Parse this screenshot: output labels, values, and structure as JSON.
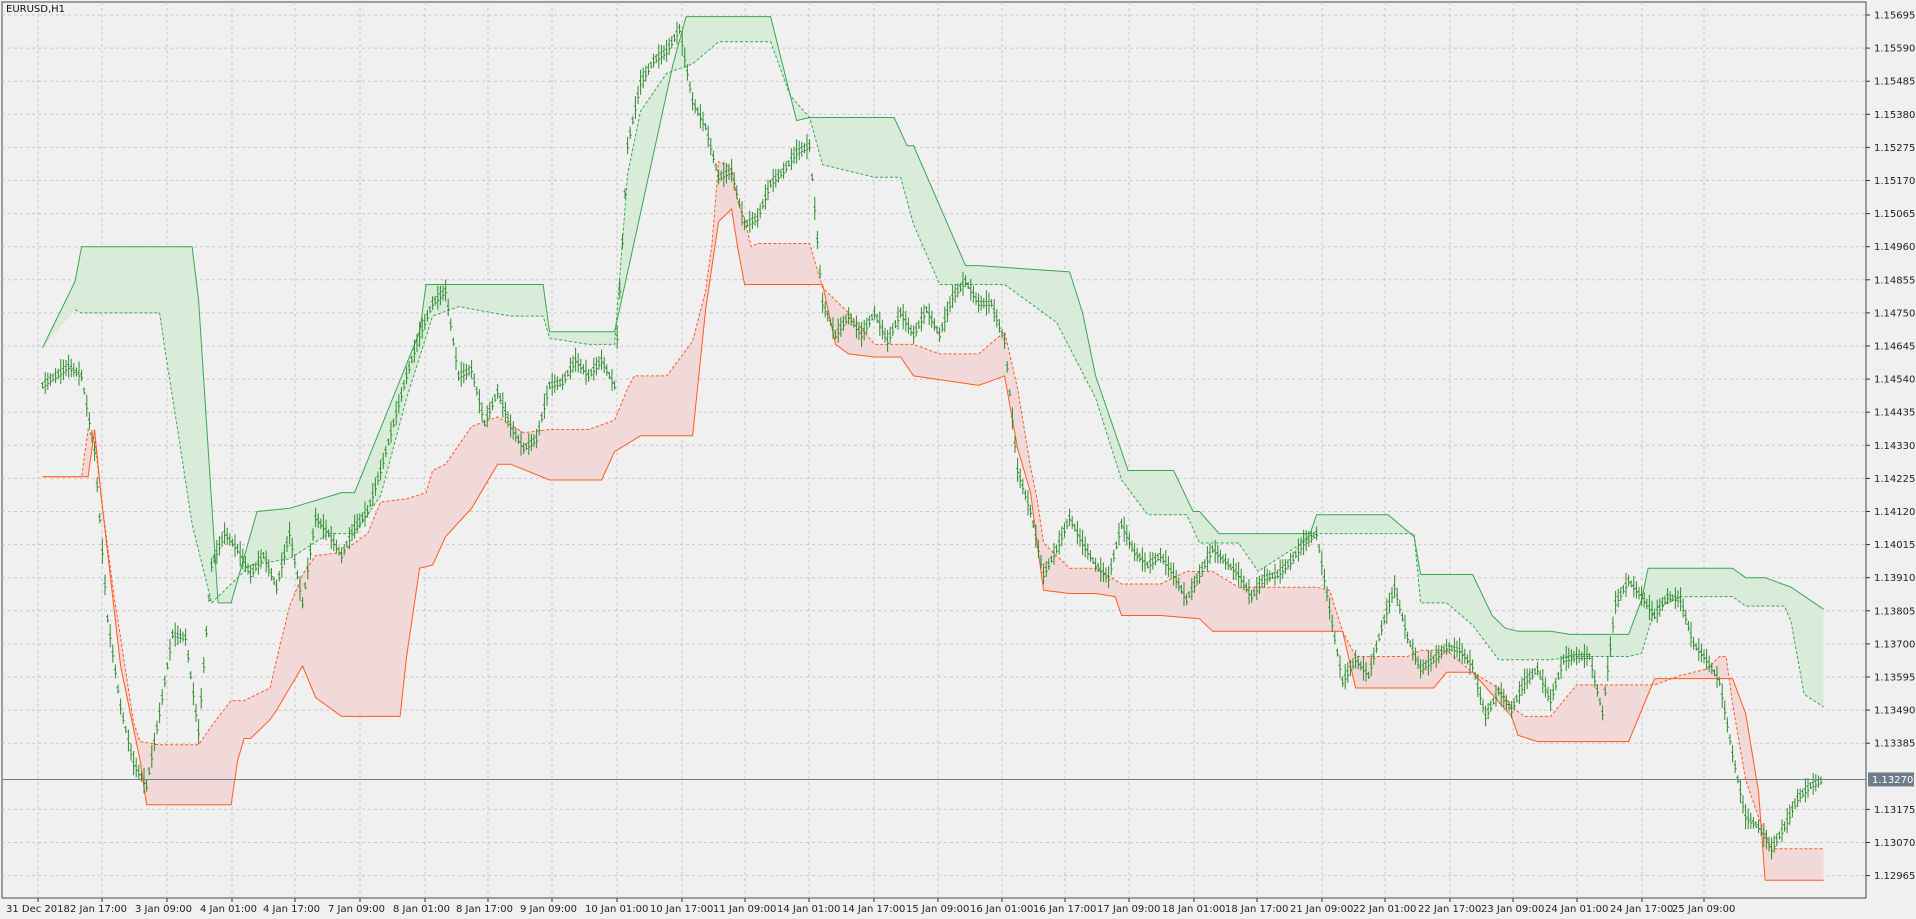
{
  "symbol_label": "EURUSD,H1",
  "current_price_label": "1.13270",
  "chart_data": {
    "type": "line",
    "symbol": "EURUSD",
    "timeframe": "H1",
    "current_price": 1.1327,
    "ylim": [
      1.1288,
      1.1574
    ],
    "grid": true,
    "colors": {
      "background": "#f0f0f0",
      "grid": "#c8c8c8",
      "price_bars": "#2e8b2e",
      "upper_band": "#3aa655",
      "upper_fill": "#d9ecd9",
      "lower_band": "#ff5a1f",
      "lower_fill": "#f1d9d9",
      "current_price_line": "#6e7c8c",
      "current_price_tag": "#6e7c8c"
    },
    "y_ticks": [
      "1.15695",
      "1.15590",
      "1.15485",
      "1.15380",
      "1.15275",
      "1.15170",
      "1.15065",
      "1.14960",
      "1.14855",
      "1.14750",
      "1.14645",
      "1.14540",
      "1.14435",
      "1.14330",
      "1.14225",
      "1.14120",
      "1.14015",
      "1.13910",
      "1.13805",
      "1.13700",
      "1.13595",
      "1.13490",
      "1.13385",
      "1.13175",
      "1.13070",
      "1.12965"
    ],
    "x_ticks": [
      "31 Dec 2018",
      "2 Jan 17:00",
      "3 Jan 09:00",
      "4 Jan 01:00",
      "4 Jan 17:00",
      "7 Jan 09:00",
      "8 Jan 01:00",
      "8 Jan 17:00",
      "9 Jan 09:00",
      "10 Jan 01:00",
      "10 Jan 17:00",
      "11 Jan 09:00",
      "14 Jan 01:00",
      "14 Jan 17:00",
      "15 Jan 09:00",
      "16 Jan 01:00",
      "16 Jan 17:00",
      "17 Jan 09:00",
      "18 Jan 01:00",
      "18 Jan 17:00",
      "21 Jan 09:00",
      "22 Jan 01:00",
      "22 Jan 17:00",
      "23 Jan 09:00",
      "24 Jan 01:00",
      "24 Jan 17:00",
      "25 Jan 09:00"
    ],
    "series": [
      {
        "key": "upper_outer",
        "x": [
          0,
          25,
          30,
          115,
          120,
          135,
          145,
          165,
          190,
          230,
          240,
          290,
          295,
          300,
          385,
          390,
          425,
          440,
          485,
          495,
          540,
          560,
          580,
          590,
          655,
          665,
          670,
          710,
          720,
          790,
          800,
          810,
          835,
          870,
          885,
          890,
          905,
          915,
          920,
          975,
          980,
          1035,
          1055,
          1060,
          1100,
          1115,
          1125,
          1135,
          1160,
          1175,
          1220,
          1230,
          1235,
          1270,
          1300,
          1310,
          1325,
          1345,
          1370
        ],
        "y": [
          1.1464,
          1.1485,
          1.1496,
          1.1496,
          1.1479,
          1.1383,
          1.1383,
          1.1412,
          1.1413,
          1.1418,
          1.1418,
          1.1469,
          1.1484,
          1.1484,
          1.1484,
          1.1469,
          1.1469,
          1.1469,
          1.1554,
          1.1569,
          1.1569,
          1.1569,
          1.1536,
          1.1537,
          1.1537,
          1.1528,
          1.1528,
          1.149,
          1.149,
          1.1488,
          1.1475,
          1.1455,
          1.1425,
          1.1425,
          1.1412,
          1.1412,
          1.1405,
          1.1405,
          1.1405,
          1.1405,
          1.1411,
          1.1411,
          1.1404,
          1.1392,
          1.1392,
          1.1379,
          1.1375,
          1.1374,
          1.1374,
          1.1373,
          1.1373,
          1.1384,
          1.1394,
          1.1394,
          1.1394,
          1.1391,
          1.1391,
          1.1388,
          1.1381
        ]
      },
      {
        "key": "upper_inner",
        "x": [
          25,
          30,
          90,
          95,
          105,
          115,
          130,
          160,
          190,
          220,
          240,
          260,
          280,
          300,
          320,
          360,
          385,
          390,
          420,
          440,
          450,
          460,
          480,
          500,
          520,
          540,
          560,
          575,
          590,
          600,
          640,
          660,
          670,
          690,
          720,
          740,
          780,
          810,
          830,
          850,
          880,
          890,
          905,
          920,
          935,
          980,
          1010,
          1040,
          1055,
          1060,
          1080,
          1100,
          1120,
          1135,
          1160,
          1180,
          1200,
          1220,
          1230,
          1240,
          1260,
          1280,
          1300,
          1310,
          1325,
          1340,
          1345,
          1355,
          1370
        ],
        "y": [
          1.1476,
          1.1475,
          1.1475,
          1.1461,
          1.1435,
          1.1408,
          1.1383,
          1.1395,
          1.1397,
          1.1405,
          1.1405,
          1.1417,
          1.1448,
          1.1474,
          1.1477,
          1.1474,
          1.1474,
          1.1467,
          1.1465,
          1.1465,
          1.1519,
          1.1539,
          1.1551,
          1.1554,
          1.1561,
          1.1561,
          1.1561,
          1.1544,
          1.1537,
          1.1522,
          1.1518,
          1.1518,
          1.1503,
          1.1484,
          1.1484,
          1.1484,
          1.1472,
          1.1448,
          1.1422,
          1.1411,
          1.1411,
          1.1402,
          1.1402,
          1.1402,
          1.1393,
          1.1405,
          1.1405,
          1.1405,
          1.1405,
          1.1383,
          1.1383,
          1.1376,
          1.1365,
          1.1365,
          1.1365,
          1.1366,
          1.1366,
          1.1366,
          1.1367,
          1.1381,
          1.1385,
          1.1385,
          1.1385,
          1.1382,
          1.1382,
          1.1382,
          1.1377,
          1.1354,
          1.135
        ]
      },
      {
        "key": "lower_inner",
        "x": [
          0,
          30,
          35,
          40,
          45,
          55,
          60,
          70,
          75,
          90,
          120,
          130,
          145,
          150,
          155,
          175,
          180,
          190,
          200,
          210,
          230,
          250,
          260,
          280,
          295,
          300,
          310,
          320,
          330,
          350,
          370,
          390,
          420,
          440,
          450,
          455,
          460,
          480,
          500,
          510,
          515,
          520,
          530,
          535,
          540,
          545,
          550,
          560,
          590,
          600,
          620,
          640,
          670,
          690,
          720,
          740,
          750,
          760,
          765,
          770,
          790,
          810,
          830,
          860,
          880,
          900,
          920,
          980,
          990,
          1000,
          1010,
          1040,
          1050,
          1060,
          1080,
          1100,
          1120,
          1130,
          1140,
          1160,
          1180,
          1220,
          1240,
          1260,
          1280,
          1290,
          1295,
          1300,
          1310,
          1320,
          1330,
          1345,
          1370
        ],
        "y": [
          1.1423,
          1.1423,
          1.1438,
          1.1435,
          1.1417,
          1.1385,
          1.1372,
          1.1345,
          1.1339,
          1.1338,
          1.1338,
          1.1344,
          1.1352,
          1.1352,
          1.1352,
          1.1356,
          1.1365,
          1.1382,
          1.1392,
          1.1398,
          1.1399,
          1.1405,
          1.1415,
          1.1416,
          1.1418,
          1.1425,
          1.1427,
          1.1433,
          1.1439,
          1.1442,
          1.1437,
          1.1438,
          1.1438,
          1.1441,
          1.1451,
          1.1455,
          1.1455,
          1.1455,
          1.1466,
          1.1482,
          1.1497,
          1.1523,
          1.1521,
          1.151,
          1.1505,
          1.1496,
          1.1497,
          1.1497,
          1.1497,
          1.1483,
          1.1475,
          1.1465,
          1.1465,
          1.1462,
          1.1462,
          1.1469,
          1.1451,
          1.1426,
          1.1416,
          1.1402,
          1.1394,
          1.1394,
          1.1389,
          1.1389,
          1.1393,
          1.1393,
          1.1388,
          1.1388,
          1.1387,
          1.1374,
          1.1366,
          1.1366,
          1.1366,
          1.1368,
          1.1368,
          1.1361,
          1.1356,
          1.135,
          1.1347,
          1.1347,
          1.1357,
          1.1357,
          1.1357,
          1.136,
          1.1362,
          1.1366,
          1.1366,
          1.1351,
          1.1327,
          1.1315,
          1.1305,
          1.1305,
          1.1305
        ]
      },
      {
        "key": "lower_outer",
        "x": [
          0,
          35,
          40,
          45,
          60,
          75,
          80,
          90,
          145,
          150,
          155,
          160,
          175,
          180,
          200,
          210,
          230,
          260,
          275,
          280,
          290,
          300,
          310,
          330,
          350,
          360,
          390,
          430,
          440,
          460,
          500,
          510,
          520,
          530,
          535,
          540,
          600,
          610,
          620,
          640,
          660,
          670,
          720,
          740,
          750,
          760,
          765,
          770,
          790,
          810,
          825,
          830,
          860,
          890,
          900,
          920,
          960,
          990,
          1000,
          1010,
          1040,
          1060,
          1070,
          1080,
          1100,
          1130,
          1135,
          1150,
          1160,
          1190,
          1220,
          1240,
          1270,
          1300,
          1310,
          1320,
          1325,
          1345,
          1370
        ],
        "y": [
          1.1423,
          1.1423,
          1.1438,
          1.1417,
          1.1363,
          1.1333,
          1.1319,
          1.1319,
          1.1319,
          1.1333,
          1.134,
          1.134,
          1.1346,
          1.1349,
          1.1363,
          1.1353,
          1.1347,
          1.1347,
          1.1347,
          1.1366,
          1.1394,
          1.1395,
          1.1404,
          1.1413,
          1.1427,
          1.1427,
          1.1422,
          1.1422,
          1.1431,
          1.1436,
          1.1436,
          1.1476,
          1.1504,
          1.1508,
          1.1495,
          1.1484,
          1.1484,
          1.1465,
          1.1462,
          1.1461,
          1.1461,
          1.1455,
          1.1452,
          1.1455,
          1.1432,
          1.1418,
          1.1402,
          1.1387,
          1.1386,
          1.1386,
          1.1385,
          1.1379,
          1.1379,
          1.1378,
          1.1374,
          1.1374,
          1.1374,
          1.1374,
          1.1374,
          1.1356,
          1.1356,
          1.1356,
          1.1356,
          1.1361,
          1.1361,
          1.1347,
          1.1341,
          1.1339,
          1.1339,
          1.1339,
          1.1339,
          1.1359,
          1.1359,
          1.1359,
          1.1348,
          1.1323,
          1.1295,
          1.1295,
          1.1295
        ]
      },
      {
        "key": "price",
        "x": [
          0,
          10,
          20,
          30,
          40,
          50,
          60,
          70,
          80,
          90,
          100,
          110,
          120,
          130,
          140,
          150,
          160,
          170,
          180,
          190,
          200,
          210,
          220,
          230,
          240,
          250,
          260,
          270,
          280,
          290,
          300,
          310,
          320,
          330,
          340,
          350,
          360,
          370,
          380,
          390,
          400,
          410,
          420,
          430,
          440,
          450,
          460,
          470,
          480,
          490,
          500,
          510,
          520,
          530,
          540,
          550,
          560,
          570,
          580,
          590,
          600,
          610,
          620,
          630,
          640,
          650,
          660,
          670,
          680,
          690,
          700,
          710,
          720,
          730,
          740,
          750,
          760,
          770,
          780,
          790,
          800,
          810,
          820,
          830,
          840,
          850,
          860,
          870,
          880,
          890,
          900,
          910,
          920,
          930,
          940,
          950,
          960,
          970,
          980,
          990,
          1000,
          1010,
          1020,
          1030,
          1040,
          1050,
          1060,
          1070,
          1080,
          1090,
          1100,
          1110,
          1120,
          1130,
          1140,
          1150,
          1160,
          1170,
          1180,
          1190,
          1200,
          1210,
          1220,
          1230,
          1240,
          1250,
          1260,
          1270,
          1280,
          1290,
          1300,
          1310,
          1320,
          1330,
          1340,
          1350,
          1360,
          1370
        ],
        "y": [
          1.1452,
          1.1455,
          1.1458,
          1.1455,
          1.1431,
          1.1378,
          1.135,
          1.1332,
          1.1325,
          1.1348,
          1.1373,
          1.1372,
          1.1342,
          1.1395,
          1.1405,
          1.14,
          1.1392,
          1.1398,
          1.1388,
          1.1405,
          1.1383,
          1.141,
          1.1405,
          1.1398,
          1.1407,
          1.1412,
          1.1425,
          1.144,
          1.1455,
          1.1468,
          1.1478,
          1.1482,
          1.1455,
          1.1457,
          1.144,
          1.145,
          1.1439,
          1.1432,
          1.1435,
          1.1452,
          1.1453,
          1.146,
          1.1455,
          1.146,
          1.1452,
          1.1528,
          1.1548,
          1.1555,
          1.1558,
          1.1565,
          1.1542,
          1.1534,
          1.1518,
          1.152,
          1.1503,
          1.1505,
          1.1516,
          1.152,
          1.1526,
          1.1528,
          1.1478,
          1.1468,
          1.1474,
          1.1468,
          1.1475,
          1.1466,
          1.1475,
          1.1468,
          1.1476,
          1.1468,
          1.148,
          1.1485,
          1.1478,
          1.1478,
          1.1466,
          1.1425,
          1.1412,
          1.1392,
          1.14,
          1.141,
          1.1402,
          1.1395,
          1.1391,
          1.1408,
          1.1399,
          1.1395,
          1.1398,
          1.1392,
          1.1384,
          1.1392,
          1.14,
          1.1396,
          1.1392,
          1.1385,
          1.1391,
          1.1392,
          1.1396,
          1.1402,
          1.1405,
          1.1381,
          1.1358,
          1.1365,
          1.136,
          1.1375,
          1.1388,
          1.1372,
          1.1362,
          1.1365,
          1.1369,
          1.1368,
          1.1363,
          1.1347,
          1.1355,
          1.1349,
          1.1358,
          1.1362,
          1.1352,
          1.1365,
          1.1366,
          1.1366,
          1.1348,
          1.1383,
          1.139,
          1.1385,
          1.1379,
          1.1385,
          1.1384,
          1.137,
          1.1365,
          1.1358,
          1.1335,
          1.1315,
          1.1312,
          1.1305,
          1.1312,
          1.1321,
          1.1325,
          1.1327
        ]
      }
    ]
  }
}
